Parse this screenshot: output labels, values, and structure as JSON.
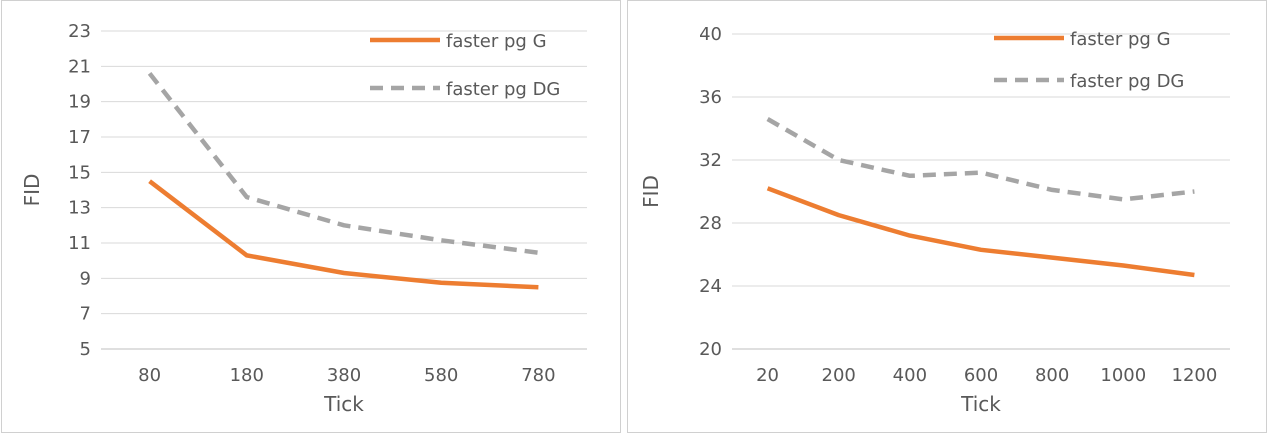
{
  "chart_data": [
    {
      "type": "line",
      "xlabel": "Tick",
      "ylabel": "FID",
      "categories": [
        "80",
        "180",
        "380",
        "580",
        "780"
      ],
      "ylim": [
        5,
        23
      ],
      "yticks": [
        5,
        7,
        9,
        11,
        13,
        15,
        17,
        19,
        21,
        23
      ],
      "grid": true,
      "legend_position": "top-right",
      "series": [
        {
          "name": "faster pg G",
          "values": [
            14.5,
            10.3,
            9.3,
            8.75,
            8.5
          ],
          "color": "#ed7d31",
          "dash": "solid"
        },
        {
          "name": "faster pg DG",
          "values": [
            20.6,
            13.6,
            12.0,
            11.15,
            10.45
          ],
          "color": "#a5a5a5",
          "dash": "dashed"
        }
      ]
    },
    {
      "type": "line",
      "xlabel": "Tick",
      "ylabel": "FID",
      "categories": [
        "20",
        "200",
        "400",
        "600",
        "800",
        "1000",
        "1200"
      ],
      "ylim": [
        20,
        40
      ],
      "yticks": [
        20,
        24,
        28,
        32,
        36,
        40
      ],
      "grid": true,
      "legend_position": "top-right",
      "series": [
        {
          "name": "faster pg G",
          "values": [
            30.2,
            28.5,
            27.2,
            26.3,
            25.8,
            25.3,
            24.7
          ],
          "color": "#ed7d31",
          "dash": "solid"
        },
        {
          "name": "faster pg DG",
          "values": [
            34.6,
            32.0,
            31.0,
            31.2,
            30.1,
            29.5,
            30.0
          ],
          "color": "#a5a5a5",
          "dash": "dashed"
        }
      ]
    }
  ]
}
